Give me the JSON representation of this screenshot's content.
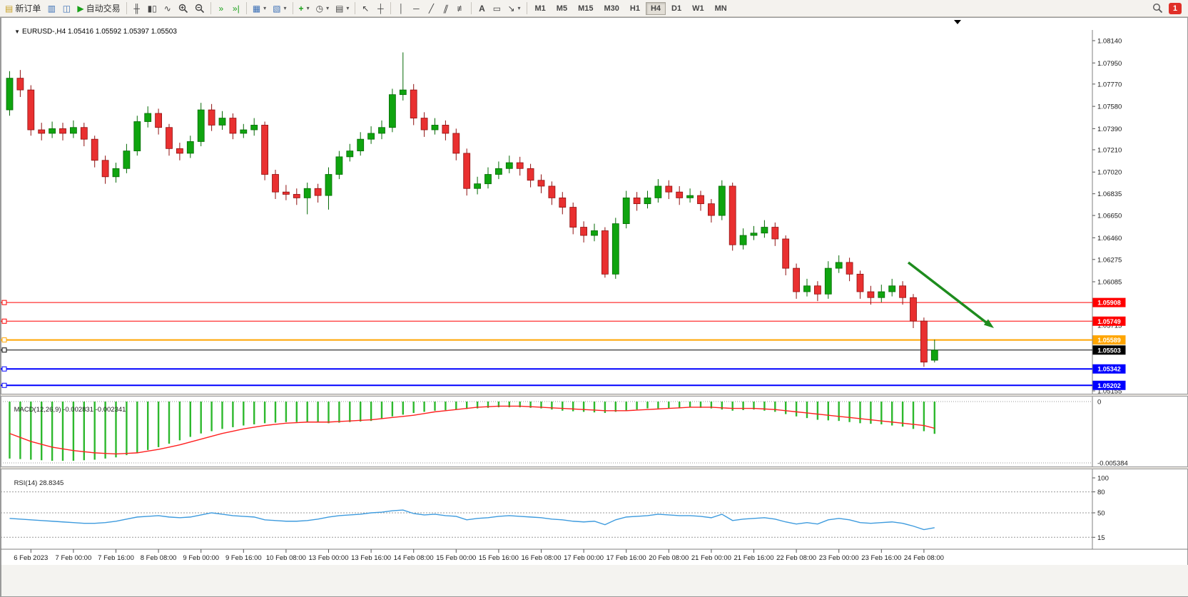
{
  "toolbar": {
    "new_order_label": "新订单",
    "auto_trading_label": "自动交易",
    "timeframes": [
      "M1",
      "M5",
      "M15",
      "M30",
      "H1",
      "H4",
      "D1",
      "W1",
      "MN"
    ],
    "active_timeframe": "H4",
    "notification_badge": "1",
    "icons": {
      "one_click": "▼",
      "new_order": "▤",
      "market_watch": "▥",
      "data_window": "◫",
      "play": "▶",
      "chart_bars": "╫",
      "chart_candles": "▮▯",
      "chart_line": "∿",
      "auto_scroll": "»",
      "chart_shift": "»|",
      "new_chart": "▦",
      "profiles": "▧",
      "indicators": "+",
      "periods": "◷",
      "templates": "▤",
      "cursor": "↖",
      "crosshair": "┼",
      "vline": "│",
      "hline": "─",
      "trendline": "╱",
      "channel": "∥",
      "fibonacci": "≢",
      "text": "A",
      "label": "▭",
      "arrows": "↘",
      "dropdown": "▾"
    }
  },
  "chart": {
    "symbol": "EURUSD-,H4",
    "ohlc_readout": "1.05416 1.05592 1.05397 1.05503",
    "scale": {
      "max": "1.08140",
      "min": "1.05155"
    },
    "up_color": "#0FA40F",
    "down_color": "#E93030",
    "price_axis_labels": [
      "1.08140",
      "1.07950",
      "1.07770",
      "1.07580",
      "1.07390",
      "1.07210",
      "1.07020",
      "1.06835",
      "1.06650",
      "1.06460",
      "1.06275",
      "1.06085",
      "1.05715",
      "1.05155"
    ],
    "levels": [
      {
        "price": "1.05908",
        "color": "#FF0000",
        "width": 1
      },
      {
        "price": "1.05749",
        "color": "#FF0000",
        "width": 1
      },
      {
        "price": "1.05589",
        "color": "#FFA500",
        "width": 2
      },
      {
        "price": "1.05503",
        "color": "#000000",
        "width": 1,
        "current": true
      },
      {
        "price": "1.05342",
        "color": "#0000FF",
        "width": 2
      },
      {
        "price": "1.05202",
        "color": "#0000FF",
        "width": 2
      }
    ],
    "candles": [
      [
        1.0755,
        1.0788,
        1.075,
        1.0782
      ],
      [
        1.0782,
        1.0789,
        1.0766,
        1.0772
      ],
      [
        1.0772,
        1.0776,
        1.0733,
        1.0738
      ],
      [
        1.0738,
        1.0744,
        1.0729,
        1.0735
      ],
      [
        1.0735,
        1.0745,
        1.0731,
        1.0739
      ],
      [
        1.0739,
        1.0744,
        1.0729,
        1.0735
      ],
      [
        1.0735,
        1.0746,
        1.0731,
        1.074
      ],
      [
        1.074,
        1.0744,
        1.0724,
        1.073
      ],
      [
        1.073,
        1.0733,
        1.0706,
        1.0712
      ],
      [
        1.0712,
        1.0716,
        1.0692,
        1.0698
      ],
      [
        1.0698,
        1.071,
        1.0693,
        1.0705
      ],
      [
        1.0705,
        1.0726,
        1.0701,
        1.072
      ],
      [
        1.072,
        1.075,
        1.0716,
        1.0745
      ],
      [
        1.0745,
        1.0758,
        1.074,
        1.0752
      ],
      [
        1.0752,
        1.0756,
        1.0734,
        1.074
      ],
      [
        1.074,
        1.0743,
        1.0716,
        1.0722
      ],
      [
        1.0722,
        1.0727,
        1.0712,
        1.0718
      ],
      [
        1.0718,
        1.0733,
        1.0714,
        1.0728
      ],
      [
        1.0728,
        1.0761,
        1.0724,
        1.0755
      ],
      [
        1.0755,
        1.076,
        1.0737,
        1.0742
      ],
      [
        1.0742,
        1.0754,
        1.0738,
        1.0748
      ],
      [
        1.0748,
        1.0752,
        1.073,
        1.0735
      ],
      [
        1.0735,
        1.0743,
        1.0731,
        1.0738
      ],
      [
        1.0738,
        1.0748,
        1.0733,
        1.0742
      ],
      [
        1.0742,
        1.0745,
        1.0695,
        1.07
      ],
      [
        1.07,
        1.0704,
        1.0679,
        1.0685
      ],
      [
        1.0685,
        1.0691,
        1.0678,
        1.0683
      ],
      [
        1.0683,
        1.0688,
        1.0674,
        1.068
      ],
      [
        1.068,
        1.0693,
        1.0666,
        1.0688
      ],
      [
        1.0688,
        1.0692,
        1.0676,
        1.0682
      ],
      [
        1.0682,
        1.0706,
        1.067,
        1.07
      ],
      [
        1.07,
        1.072,
        1.0696,
        1.0715
      ],
      [
        1.0715,
        1.0726,
        1.0711,
        1.072
      ],
      [
        1.072,
        1.0736,
        1.0716,
        1.073
      ],
      [
        1.073,
        1.0741,
        1.0726,
        1.0735
      ],
      [
        1.0735,
        1.0746,
        1.073,
        1.074
      ],
      [
        1.074,
        1.0773,
        1.0736,
        1.0768
      ],
      [
        1.0768,
        1.0804,
        1.0763,
        1.0772
      ],
      [
        1.0772,
        1.0777,
        1.0742,
        1.0748
      ],
      [
        1.0748,
        1.0753,
        1.0732,
        1.0738
      ],
      [
        1.0738,
        1.0748,
        1.0734,
        1.0742
      ],
      [
        1.0742,
        1.0746,
        1.0729,
        1.0735
      ],
      [
        1.0735,
        1.0739,
        1.0712,
        1.0718
      ],
      [
        1.0718,
        1.0722,
        1.0682,
        1.0688
      ],
      [
        1.0688,
        1.0698,
        1.0683,
        1.0692
      ],
      [
        1.0692,
        1.0706,
        1.0688,
        1.07
      ],
      [
        1.07,
        1.0711,
        1.0696,
        1.0705
      ],
      [
        1.0705,
        1.0716,
        1.0701,
        1.071
      ],
      [
        1.071,
        1.0715,
        1.0699,
        1.0705
      ],
      [
        1.0705,
        1.0709,
        1.0689,
        1.0695
      ],
      [
        1.0695,
        1.07,
        1.0684,
        1.069
      ],
      [
        1.069,
        1.0694,
        1.0674,
        1.068
      ],
      [
        1.068,
        1.0685,
        1.0666,
        1.0672
      ],
      [
        1.0672,
        1.0676,
        1.0649,
        1.0655
      ],
      [
        1.0655,
        1.066,
        1.0642,
        1.0648
      ],
      [
        1.0648,
        1.0658,
        1.0643,
        1.0652
      ],
      [
        1.0652,
        1.0655,
        1.0612,
        1.0615
      ],
      [
        1.0615,
        1.0663,
        1.0611,
        1.0658
      ],
      [
        1.0658,
        1.0686,
        1.0654,
        1.068
      ],
      [
        1.068,
        1.0685,
        1.0669,
        1.0675
      ],
      [
        1.0675,
        1.0686,
        1.0671,
        1.068
      ],
      [
        1.068,
        1.0696,
        1.0676,
        1.069
      ],
      [
        1.069,
        1.0695,
        1.0679,
        1.0685
      ],
      [
        1.0685,
        1.069,
        1.0674,
        1.068
      ],
      [
        1.068,
        1.0688,
        1.0676,
        1.0682
      ],
      [
        1.0682,
        1.0686,
        1.0669,
        1.0675
      ],
      [
        1.0675,
        1.0679,
        1.0659,
        1.0665
      ],
      [
        1.0665,
        1.0695,
        1.0661,
        1.069
      ],
      [
        1.069,
        1.0693,
        1.0635,
        1.064
      ],
      [
        1.064,
        1.0654,
        1.0636,
        1.0648
      ],
      [
        1.0648,
        1.0656,
        1.0644,
        1.065
      ],
      [
        1.065,
        1.0661,
        1.0646,
        1.0655
      ],
      [
        1.0655,
        1.0659,
        1.0639,
        1.0645
      ],
      [
        1.0645,
        1.0648,
        1.0614,
        1.062
      ],
      [
        1.062,
        1.0624,
        1.0594,
        1.06
      ],
      [
        1.06,
        1.0611,
        1.0596,
        1.0605
      ],
      [
        1.0605,
        1.0609,
        1.0592,
        1.0598
      ],
      [
        1.0598,
        1.0626,
        1.0594,
        1.062
      ],
      [
        1.062,
        1.0631,
        1.0616,
        1.0625
      ],
      [
        1.0625,
        1.0629,
        1.0609,
        1.0615
      ],
      [
        1.0615,
        1.0618,
        1.0594,
        1.06
      ],
      [
        1.06,
        1.0605,
        1.0589,
        1.0595
      ],
      [
        1.0595,
        1.0606,
        1.0591,
        1.06
      ],
      [
        1.06,
        1.0611,
        1.0596,
        1.0605
      ],
      [
        1.0605,
        1.0609,
        1.0589,
        1.0595
      ],
      [
        1.0595,
        1.0598,
        1.0569,
        1.0575
      ],
      [
        1.0575,
        1.0578,
        1.0536,
        1.054
      ],
      [
        1.05416,
        1.05592,
        1.05397,
        1.05503
      ]
    ]
  },
  "macd": {
    "name": "MACD(12,26,9)",
    "value_main": "-0.002831",
    "value_signal": "-0.002341",
    "axis": [
      "0",
      "-0.005384"
    ],
    "hist_color": "#2DB82D",
    "signal_color": "#FF2020",
    "histogram": [
      -0.005,
      -0.00505,
      -0.0051,
      -0.00515,
      -0.0052,
      -0.0052,
      -0.0052,
      -0.00515,
      -0.0051,
      -0.005,
      -0.0049,
      -0.0047,
      -0.0045,
      -0.00425,
      -0.004,
      -0.0037,
      -0.0034,
      -0.0031,
      -0.0028,
      -0.0026,
      -0.0024,
      -0.00225,
      -0.0021,
      -0.002,
      -0.0019,
      -0.00185,
      -0.0018,
      -0.0018,
      -0.0018,
      -0.00185,
      -0.0019,
      -0.00185,
      -0.0018,
      -0.00175,
      -0.0017,
      -0.0015,
      -0.0013,
      -0.00115,
      -0.001,
      -0.0009,
      -0.0008,
      -0.00075,
      -0.0007,
      -0.00065,
      -0.0006,
      -0.00055,
      -0.0005,
      -0.0005,
      -0.0005,
      -0.00055,
      -0.0006,
      -0.0007,
      -0.0008,
      -0.00085,
      -0.0009,
      -0.00095,
      -0.001,
      -0.0009,
      -0.0008,
      -0.0007,
      -0.0006,
      -0.0006,
      -0.0006,
      -0.00055,
      -0.0005,
      -0.00055,
      -0.0006,
      -0.0007,
      -0.0008,
      -0.00075,
      -0.0007,
      -0.0008,
      -0.0009,
      -0.0011,
      -0.0013,
      -0.00145,
      -0.0016,
      -0.00165,
      -0.0017,
      -0.0018,
      -0.0019,
      -0.00195,
      -0.002,
      -0.0021,
      -0.0022,
      -0.0024,
      -0.0026,
      -0.002831
    ],
    "signal": [
      -0.0028,
      -0.00315,
      -0.0035,
      -0.00375,
      -0.004,
      -0.00415,
      -0.0043,
      -0.0044,
      -0.0045,
      -0.00455,
      -0.0046,
      -0.00455,
      -0.0045,
      -0.00435,
      -0.0042,
      -0.004,
      -0.0038,
      -0.00355,
      -0.0033,
      -0.00305,
      -0.0028,
      -0.0026,
      -0.0024,
      -0.00225,
      -0.0021,
      -0.002,
      -0.0019,
      -0.00185,
      -0.0018,
      -0.0018,
      -0.0018,
      -0.00175,
      -0.0017,
      -0.00165,
      -0.0016,
      -0.0015,
      -0.0014,
      -0.0013,
      -0.0012,
      -0.00105,
      -0.0009,
      -0.0008,
      -0.0007,
      -0.0006,
      -0.0005,
      -0.00045,
      -0.0004,
      -0.0004,
      -0.0004,
      -0.00045,
      -0.0005,
      -0.00055,
      -0.0006,
      -0.00065,
      -0.0007,
      -0.00075,
      -0.0008,
      -0.0008,
      -0.0008,
      -0.00075,
      -0.0007,
      -0.00065,
      -0.0006,
      -0.00055,
      -0.0005,
      -0.0005,
      -0.0005,
      -0.00055,
      -0.0006,
      -0.0006,
      -0.0006,
      -0.00065,
      -0.0007,
      -0.0008,
      -0.0009,
      -0.001,
      -0.0011,
      -0.0012,
      -0.0013,
      -0.0014,
      -0.0015,
      -0.0016,
      -0.0017,
      -0.0018,
      -0.0019,
      -0.002,
      -0.0021,
      -0.002341
    ]
  },
  "rsi": {
    "name": "RSI(14)",
    "value": "28.8345",
    "axis": [
      100,
      80,
      50,
      15
    ],
    "line_color": "#3E9BDE",
    "values": [
      42,
      41,
      40,
      39,
      38,
      37,
      36,
      35,
      35,
      36,
      38,
      41,
      44,
      45,
      46,
      44,
      43,
      44,
      47,
      50,
      48,
      46,
      45,
      44,
      40,
      39,
      38,
      38,
      39,
      41,
      44,
      46,
      47,
      48,
      50,
      51,
      53,
      54,
      49,
      47,
      48,
      46,
      45,
      40,
      42,
      43,
      45,
      46,
      45,
      44,
      43,
      41,
      40,
      38,
      37,
      38,
      33,
      40,
      44,
      45,
      46,
      48,
      47,
      46,
      46,
      45,
      43,
      48,
      39,
      41,
      42,
      43,
      41,
      37,
      34,
      36,
      34,
      40,
      42,
      40,
      36,
      35,
      36,
      37,
      35,
      31,
      26,
      28.8
    ]
  },
  "time_axis": {
    "labels": [
      "6 Feb 2023",
      "7 Feb 00:00",
      "7 Feb 16:00",
      "8 Feb 08:00",
      "9 Feb 00:00",
      "9 Feb 16:00",
      "10 Feb 08:00",
      "13 Feb 00:00",
      "13 Feb 16:00",
      "14 Feb 08:00",
      "15 Feb 00:00",
      "15 Feb 16:00",
      "16 Feb 08:00",
      "17 Feb 00:00",
      "17 Feb 16:00",
      "20 Feb 08:00",
      "21 Feb 00:00",
      "21 Feb 16:00",
      "22 Feb 08:00",
      "23 Feb 00:00",
      "23 Feb 16:00",
      "24 Feb 08:00"
    ],
    "tick_indices": [
      2,
      6,
      10,
      14,
      18,
      22,
      26,
      30,
      34,
      38,
      42,
      46,
      50,
      54,
      58,
      62,
      66,
      70,
      74,
      78,
      82,
      86
    ]
  },
  "annotation": {
    "arrow_color": "#1E8C1E"
  }
}
